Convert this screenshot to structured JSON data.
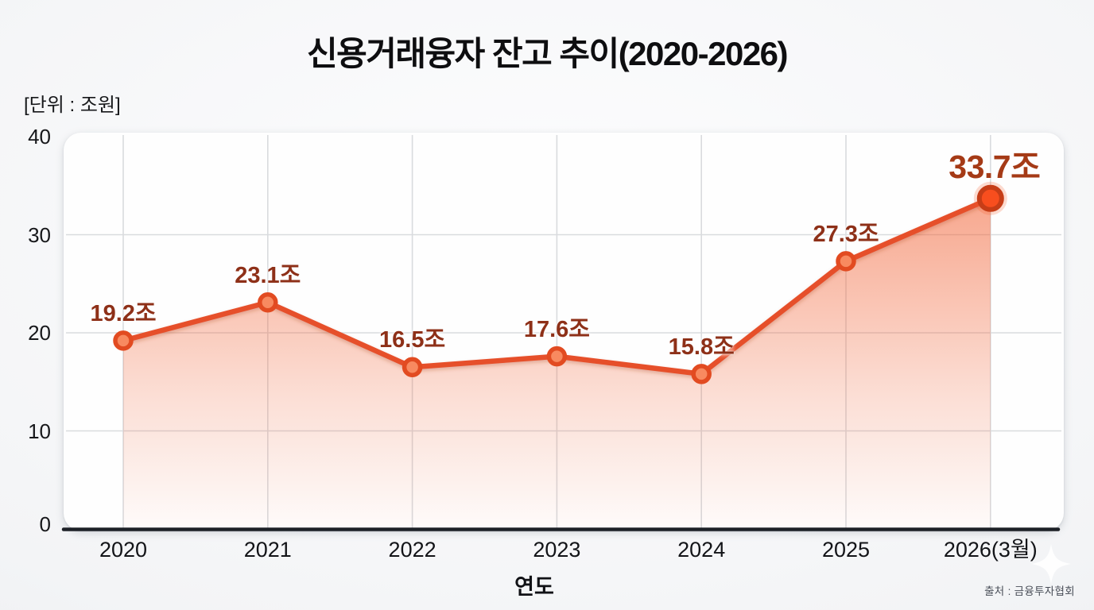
{
  "page": {
    "title": "신용거래융자 잔고 추이(2020-2026)",
    "unit_label": "[단위 : 조원]",
    "source": "출처 : 금융투자협회"
  },
  "chart_data": {
    "type": "line",
    "title": "신용거래융자 잔고 추이(2020-2026)",
    "categories": [
      "2020",
      "2021",
      "2022",
      "2023",
      "2024",
      "2025",
      "2026(3월)"
    ],
    "values": [
      19.2,
      23.1,
      16.5,
      17.6,
      15.8,
      27.3,
      33.7
    ],
    "point_labels": [
      "19.2조",
      "23.1조",
      "16.5조",
      "17.6조",
      "15.8조",
      "27.3조",
      "33.7조"
    ],
    "highlight_index": 6,
    "xlabel": "연도",
    "ylabel": "단위 : 조원",
    "ylim": [
      0,
      40
    ],
    "yticks": [
      0,
      10,
      20,
      30,
      40
    ],
    "grid": true,
    "legend": "none",
    "colors": {
      "line": "#e6502a",
      "marker_fill": "#f88a60",
      "marker_ring": "#e24b21",
      "last_marker_fill": "#f84e1e",
      "last_marker_ring": "#c63d17",
      "area_top": "rgba(242,96,50,0.55)",
      "area_bottom": "rgba(242,96,50,0.02)",
      "label": "#8e3018",
      "label_highlight": "#a53a16",
      "gridline": "#d9dbde",
      "axis": "#1d2127"
    }
  }
}
